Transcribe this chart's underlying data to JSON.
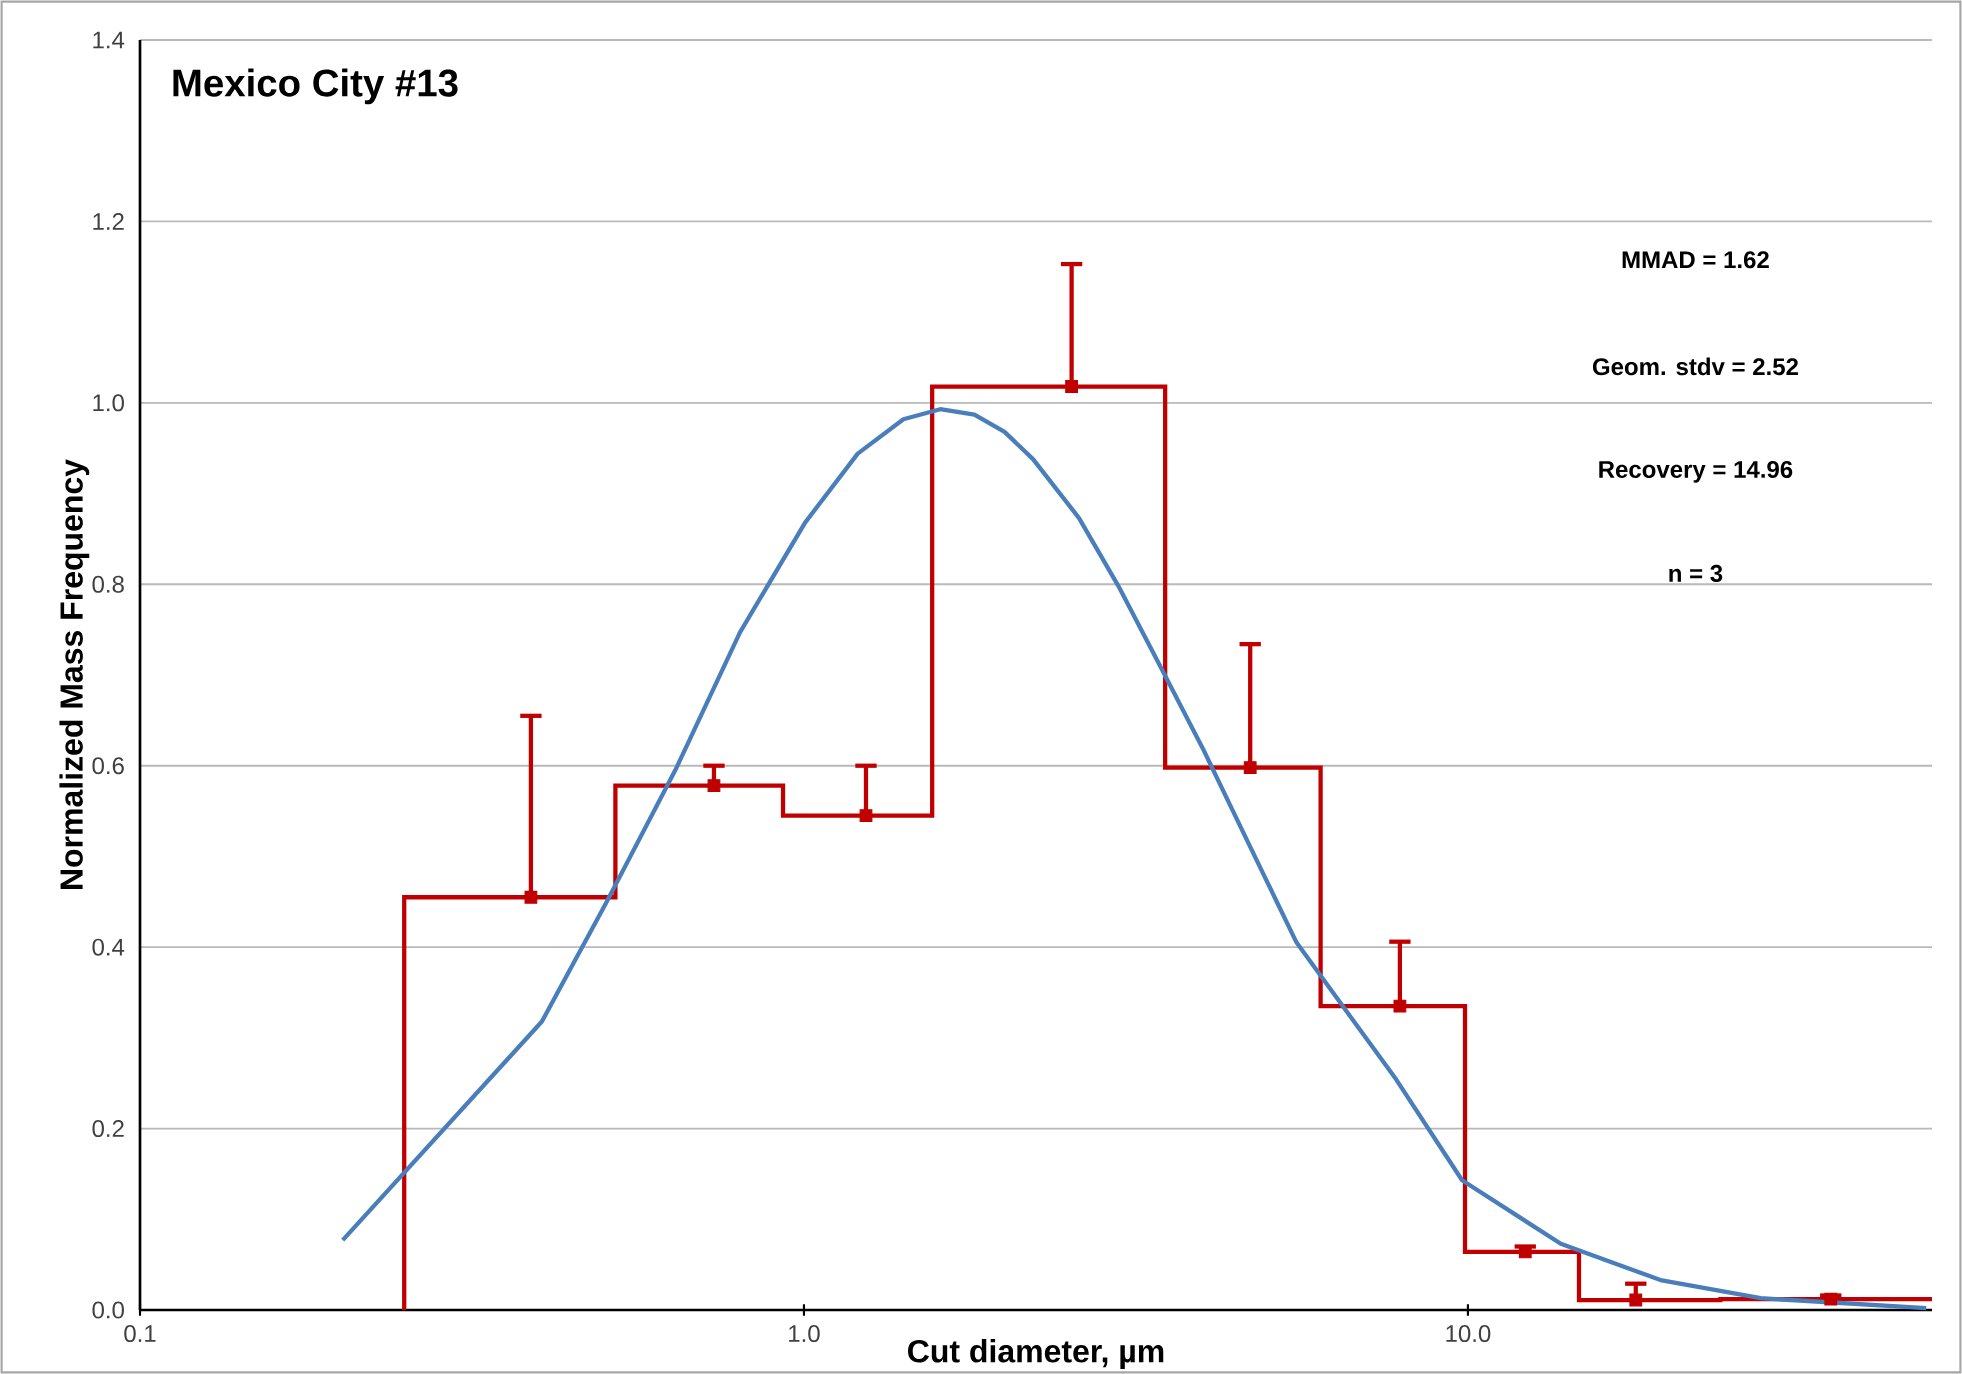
{
  "chart_data": {
    "type": "histogram",
    "title": "Mexico City #13",
    "xlabel": "Cut diameter, µm",
    "ylabel": "Normalized Mass Frequency",
    "log": "x",
    "grid": "y",
    "xlim": [
      0.1,
      50
    ],
    "xticks": [
      {
        "value": 0.1,
        "label": "0.1"
      },
      {
        "value": 1,
        "label": "1.0"
      },
      {
        "value": 10,
        "label": "10.0"
      }
    ],
    "ylim": [
      0,
      1.4
    ],
    "yticks": [
      {
        "value": 0,
        "label": "0.0"
      },
      {
        "value": 0.2,
        "label": "0.2"
      },
      {
        "value": 0.4,
        "label": "0.4"
      },
      {
        "value": 0.6,
        "label": "0.6"
      },
      {
        "value": 0.8,
        "label": "0.8"
      },
      {
        "value": 1.0,
        "label": "1.0"
      },
      {
        "value": 1.2,
        "label": "1.2"
      },
      {
        "value": 1.4,
        "label": "1.4"
      }
    ],
    "series": [
      {
        "type": "histogram",
        "color": "#c00000",
        "bins": [
          0.25,
          0.52,
          0.93,
          1.56,
          3.5,
          6.0,
          9.9,
          14.7,
          24,
          50
        ],
        "values": [
          0.455,
          0.578,
          0.545,
          1.018,
          0.598,
          0.335,
          0.064,
          0.011,
          0.012
        ]
      },
      {
        "type": "scatter",
        "marker": "square",
        "color": "#c00000",
        "x": [
          0.388,
          0.732,
          1.24,
          2.53,
          4.7,
          7.9,
          12.2,
          17.9,
          35.2
        ],
        "values": [
          0.455,
          0.578,
          0.545,
          1.018,
          0.598,
          0.335,
          0.064,
          0.011,
          0.012
        ],
        "errors": [
          [
            0.455,
            0.655
          ],
          [
            0.578,
            0.6
          ],
          [
            0.545,
            0.6
          ],
          [
            1.018,
            1.153
          ],
          [
            0.598,
            0.734
          ],
          [
            0.335,
            0.406
          ],
          [
            0.064,
            0.07
          ],
          [
            0.011,
            0.029
          ],
          [
            0.012,
            0.016
          ]
        ]
      },
      {
        "type": "line",
        "color": "#4a7ebb",
        "x": [
          0.202,
          0.403,
          0.503,
          0.642,
          0.801,
          1.004,
          1.205,
          1.412,
          1.604,
          1.806,
          2.005,
          2.213,
          2.596,
          2.976,
          3.45,
          4.0,
          4.64,
          5.52,
          7.8,
          9.8,
          13.8,
          19.5,
          27.6,
          49
        ],
        "values": [
          0.077,
          0.318,
          0.448,
          0.597,
          0.747,
          0.868,
          0.944,
          0.982,
          0.993,
          0.987,
          0.968,
          0.938,
          0.873,
          0.798,
          0.708,
          0.617,
          0.519,
          0.405,
          0.254,
          0.143,
          0.073,
          0.033,
          0.013,
          0.002
        ]
      }
    ],
    "annotations": [
      "MMAD =  1.62",
      "Geom. stdv =  2.52",
      "Recovery =  14.96",
      "n =  3"
    ]
  }
}
